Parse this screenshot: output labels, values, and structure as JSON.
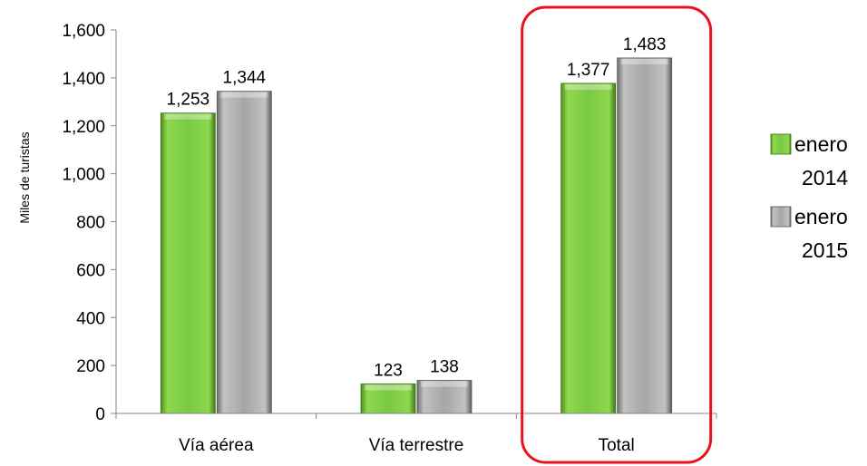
{
  "chart_data": {
    "type": "bar",
    "categories": [
      "Vía aérea",
      "Vía terrestre",
      "Total"
    ],
    "series": [
      {
        "name": "enero 2014",
        "legend_lines": [
          "enero",
          "2014"
        ],
        "values": [
          1253,
          123,
          1377
        ],
        "labels": [
          "1,253",
          "123",
          "1,377"
        ],
        "color": "#7ac943"
      },
      {
        "name": "enero 2015",
        "legend_lines": [
          "enero",
          "2015"
        ],
        "values": [
          1344,
          138,
          1483
        ],
        "labels": [
          "1,344",
          "138",
          "1,483"
        ],
        "color": "#a6a6a6"
      }
    ],
    "ylabel": "Miles  de turistas",
    "ylim": [
      0,
      1600
    ],
    "yticks": [
      0,
      200,
      400,
      600,
      800,
      1000,
      1200,
      1400,
      1600
    ],
    "ytick_labels": [
      "0",
      "200",
      "400",
      "600",
      "800",
      "1,000",
      "1,200",
      "1,400",
      "1,600"
    ],
    "grid": false,
    "legend_position": "right",
    "highlight_category": "Total",
    "highlight_color": "#e8141b"
  }
}
